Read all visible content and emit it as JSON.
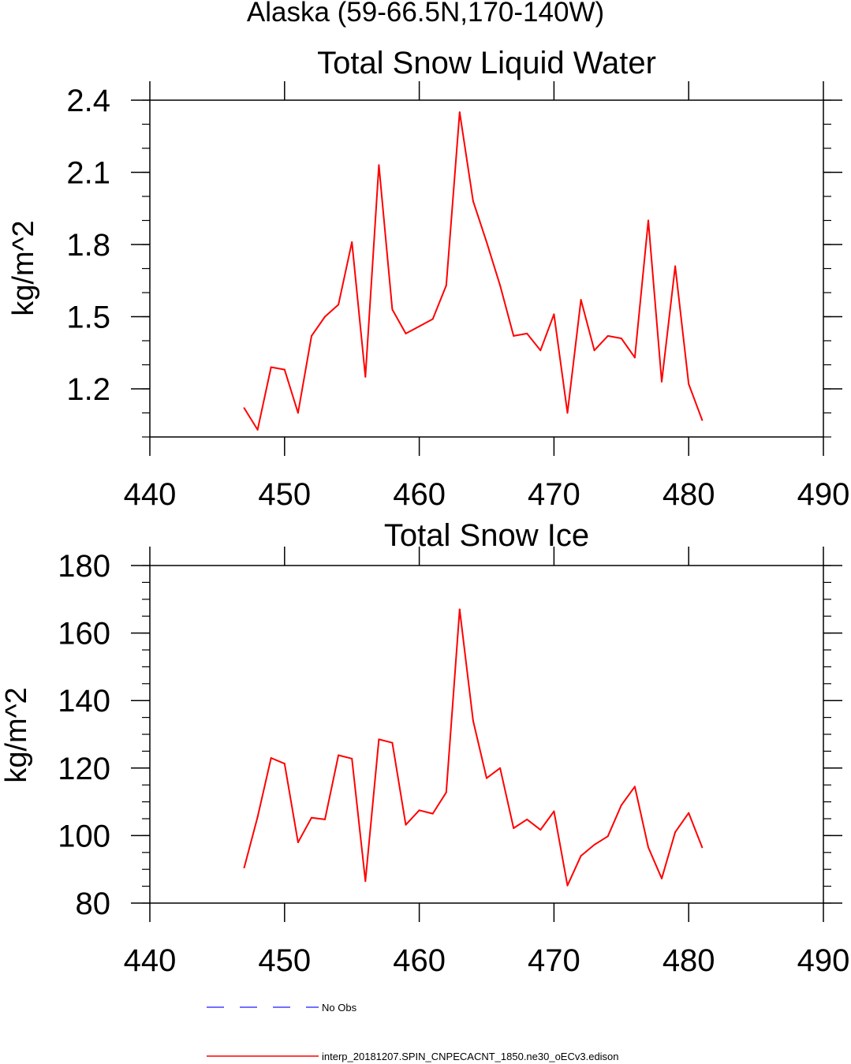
{
  "figure": {
    "title": "Alaska (59-66.5N,170-140W)",
    "legend": [
      {
        "label": "No Obs",
        "color": "#4040ff",
        "style": "dashed"
      },
      {
        "label": "interp_20181207.SPIN_CNPECACNT_1850.ne30_oECv3.edison",
        "color": "#ff0000",
        "style": "solid"
      }
    ]
  },
  "chart_data": [
    {
      "type": "line",
      "title": "Total Snow Liquid Water",
      "ylabel": "kg/m^2",
      "xlabel": "",
      "xlim": [
        440,
        490
      ],
      "ylim": [
        1.0,
        2.4
      ],
      "xticks": [
        440,
        450,
        460,
        470,
        480,
        490
      ],
      "yticks": [
        1.2,
        1.5,
        1.8,
        2.1,
        2.4
      ],
      "ytick_labels": [
        "1.2",
        "1.5",
        "1.8",
        "2.1",
        "2.4"
      ],
      "series": [
        {
          "name": "interp_20181207.SPIN_CNPECACNT_1850.ne30_oECv3.edison",
          "color": "#ff0000",
          "x": [
            447,
            448,
            449,
            450,
            451,
            452,
            453,
            454,
            455,
            456,
            457,
            458,
            459,
            460,
            461,
            462,
            463,
            464,
            465,
            466,
            467,
            468,
            469,
            470,
            471,
            472,
            473,
            474,
            475,
            476,
            477,
            478,
            479,
            480,
            481
          ],
          "y": [
            1.12,
            1.03,
            1.29,
            1.28,
            1.1,
            1.42,
            1.5,
            1.55,
            1.81,
            1.25,
            2.13,
            1.53,
            1.43,
            1.46,
            1.49,
            1.63,
            2.35,
            1.98,
            1.81,
            1.63,
            1.42,
            1.43,
            1.36,
            1.51,
            1.1,
            1.57,
            1.36,
            1.42,
            1.41,
            1.33,
            1.9,
            1.23,
            1.71,
            1.22,
            1.07
          ]
        }
      ]
    },
    {
      "type": "line",
      "title": "Total Snow Ice",
      "ylabel": "kg/m^2",
      "xlabel": "",
      "xlim": [
        440,
        490
      ],
      "ylim": [
        80,
        180
      ],
      "xticks": [
        440,
        450,
        460,
        470,
        480,
        490
      ],
      "yticks": [
        80,
        100,
        120,
        140,
        160,
        180
      ],
      "ytick_labels": [
        "80",
        "100",
        "120",
        "140",
        "160",
        "180"
      ],
      "series": [
        {
          "name": "interp_20181207.SPIN_CNPECACNT_1850.ne30_oECv3.edison",
          "color": "#ff0000",
          "x": [
            447,
            448,
            449,
            450,
            451,
            452,
            453,
            454,
            455,
            456,
            457,
            458,
            459,
            460,
            461,
            462,
            463,
            464,
            465,
            466,
            467,
            468,
            469,
            470,
            471,
            472,
            473,
            474,
            475,
            476,
            477,
            478,
            479,
            480,
            481
          ],
          "y": [
            90.5,
            105.5,
            123,
            121.3,
            98,
            105.3,
            104.8,
            123.8,
            122.8,
            86.5,
            128.5,
            127.5,
            103.2,
            107.5,
            106.5,
            112.8,
            167,
            134,
            117,
            120,
            102.2,
            104.8,
            101.7,
            107.2,
            85.2,
            94,
            97.3,
            99.8,
            109,
            114.5,
            96.5,
            87.3,
            101,
            106.7,
            96.5
          ]
        }
      ]
    }
  ]
}
